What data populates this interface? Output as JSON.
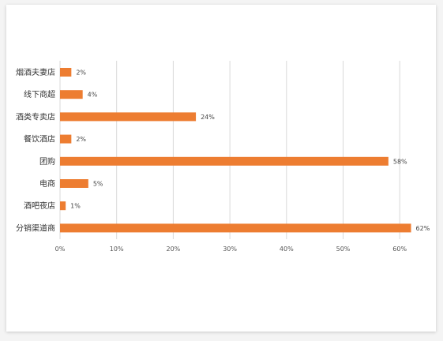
{
  "chart_data": {
    "type": "bar",
    "orientation": "horizontal",
    "categories": [
      "烟酒夫妻店",
      "线下商超",
      "酒类专卖店",
      "餐饮酒店",
      "团购",
      "电商",
      "酒吧夜店",
      "分销渠道商"
    ],
    "values": [
      2,
      4,
      24,
      2,
      58,
      5,
      1,
      62
    ],
    "value_labels": [
      "2%",
      "4%",
      "24%",
      "2%",
      "58%",
      "5%",
      "1%",
      "62%"
    ],
    "xlim": [
      0,
      62
    ],
    "x_ticks": [
      0,
      10,
      20,
      30,
      40,
      50,
      60
    ],
    "x_tick_labels": [
      "0%",
      "10%",
      "20%",
      "30%",
      "40%",
      "50%",
      "60%"
    ],
    "grid": true,
    "bar_color": "#ED7D31",
    "grid_color": "#D9D9D9",
    "title": "",
    "xlabel": "",
    "ylabel": ""
  }
}
